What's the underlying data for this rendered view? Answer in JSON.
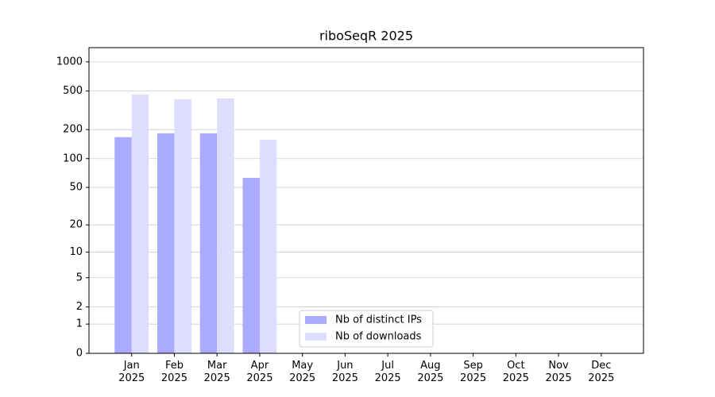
{
  "chart_data": {
    "type": "bar",
    "title": "riboSeqR 2025",
    "categories": [
      "Jan\n2025",
      "Feb\n2025",
      "Mar\n2025",
      "Apr\n2025",
      "May\n2025",
      "Jun\n2025",
      "Jul\n2025",
      "Aug\n2025",
      "Sep\n2025",
      "Oct\n2025",
      "Nov\n2025",
      "Dec\n2025"
    ],
    "series": [
      {
        "name": "Nb of distinct IPs",
        "color": "#aaaaff",
        "values": [
          167,
          183,
          183,
          63,
          null,
          null,
          null,
          null,
          null,
          null,
          null,
          null
        ]
      },
      {
        "name": "Nb of downloads",
        "color": "#ddddff",
        "values": [
          462,
          412,
          420,
          157,
          null,
          null,
          null,
          null,
          null,
          null,
          null,
          null
        ]
      }
    ],
    "yscale": "log1p",
    "ylim": [
      0,
      1400
    ],
    "yticks": [
      0,
      1,
      2,
      5,
      10,
      20,
      50,
      100,
      200,
      500,
      1000
    ],
    "grid": true,
    "legend": "lower center"
  }
}
